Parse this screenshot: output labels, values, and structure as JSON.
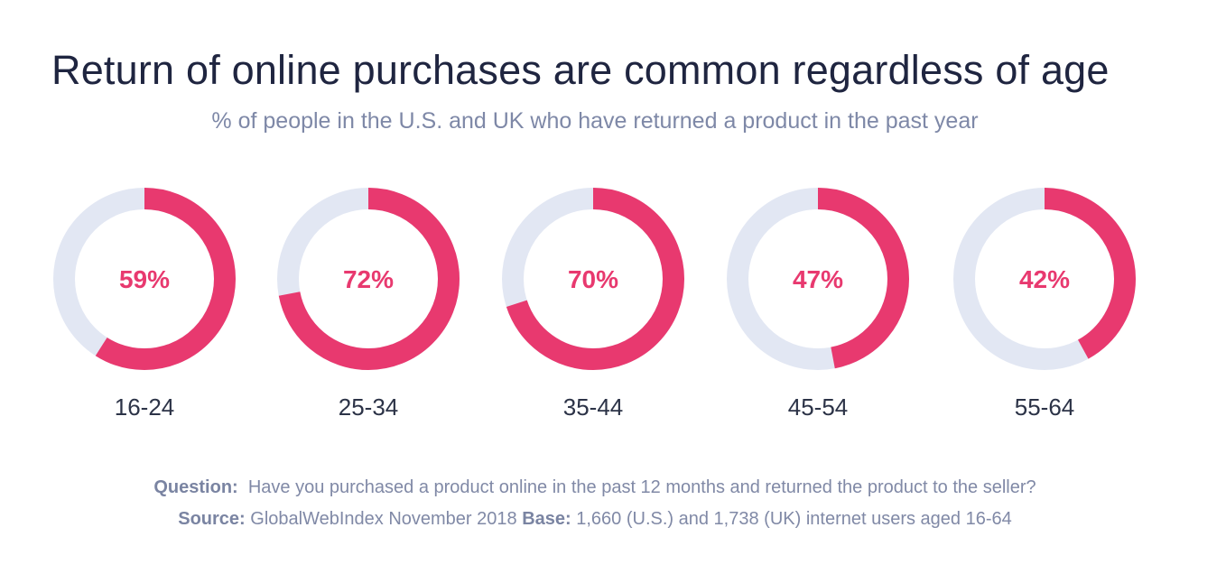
{
  "chart_data": {
    "type": "donut",
    "title": "Return of online purchases are common regardless of age",
    "subtitle": "% of people in the U.S. and UK who have returned a product in the past year",
    "categories": [
      "16-24",
      "25-34",
      "35-44",
      "45-54",
      "55-64"
    ],
    "values": [
      59,
      72,
      70,
      47,
      42
    ],
    "value_labels": [
      "59%",
      "72%",
      "70%",
      "47%",
      "42%"
    ],
    "max": 100,
    "colors": {
      "fill": "#e8396f",
      "track": "#e2e7f3",
      "value_text": "#e8396f",
      "category_text": "#2c3347"
    }
  },
  "footer": {
    "question_label": "Question:",
    "question_text": "Have you purchased a product online in the past 12 months and returned the product to the seller?",
    "source_label": "Source:",
    "source_text": "GlobalWebIndex November 2018",
    "base_label": "Base:",
    "base_text": "1,660 (U.S.) and 1,738 (UK) internet users aged 16-64"
  }
}
